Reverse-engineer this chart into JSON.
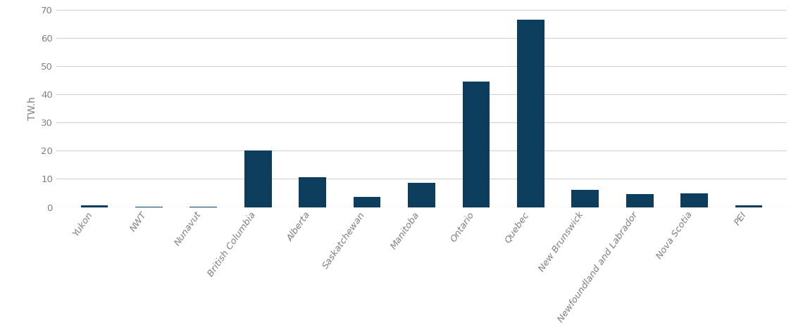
{
  "categories": [
    "Yukon",
    "NWT",
    "Nunavut",
    "British Columbia",
    "Alberta",
    "Saskatchewan",
    "Manitoba",
    "Ontario",
    "Quebec",
    "New Brunswick",
    "Newfoundland and Labrador",
    "Nova Scotia",
    "PEI"
  ],
  "values": [
    0.6,
    0.15,
    0.2,
    20.0,
    10.5,
    3.5,
    8.5,
    44.5,
    66.5,
    6.0,
    4.5,
    4.8,
    0.6
  ],
  "bar_color": "#0d3d5c",
  "ylabel": "TW.h",
  "ylim": [
    0,
    70
  ],
  "yticks": [
    0,
    10,
    20,
    30,
    40,
    50,
    60,
    70
  ],
  "background_color": "#ffffff",
  "grid_color": "#d0d0d0",
  "tick_label_color": "#808080",
  "ylabel_color": "#808080",
  "bar_width": 0.5,
  "label_rotation": 55,
  "label_fontsize": 9.5
}
